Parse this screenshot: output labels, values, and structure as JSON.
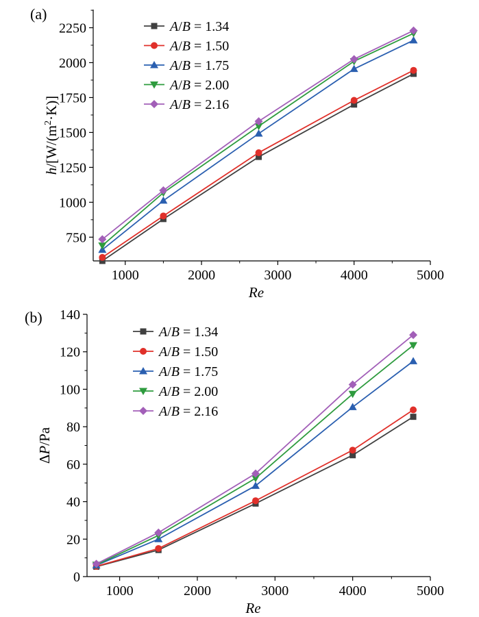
{
  "chart_data": [
    {
      "panel_label": "(a)",
      "type": "line",
      "xlabel": "Re",
      "ylabel": {
        "main": "h/[W/(m",
        "sup": "2",
        "tail": "·K)]"
      },
      "xlim": [
        580,
        5000
      ],
      "ylim": [
        580,
        2380
      ],
      "xticks": [
        1000,
        2000,
        3000,
        4000,
        5000
      ],
      "yticks": [
        750,
        1000,
        1250,
        1500,
        1750,
        2000,
        2250
      ],
      "legend_position": "top-left",
      "x": [
        700,
        1500,
        2750,
        4000,
        4780
      ],
      "series": [
        {
          "name": "A/B = 1.34",
          "ratio": "1.34",
          "color": "#404040",
          "marker": "square",
          "values": [
            580,
            880,
            1325,
            1700,
            1920
          ]
        },
        {
          "name": "A/B = 1.50",
          "ratio": "1.50",
          "color": "#e0302a",
          "marker": "circle",
          "values": [
            605,
            902,
            1355,
            1730,
            1945
          ]
        },
        {
          "name": "A/B = 1.75",
          "ratio": "1.75",
          "color": "#2a5fb0",
          "marker": "triangle-up",
          "values": [
            660,
            1012,
            1492,
            1955,
            2160
          ]
        },
        {
          "name": "A/B = 2.00",
          "ratio": "2.00",
          "color": "#2e9b3e",
          "marker": "triangle-down",
          "values": [
            690,
            1068,
            1545,
            2010,
            2210
          ]
        },
        {
          "name": "A/B = 2.16",
          "ratio": "2.16",
          "color": "#a25fb8",
          "marker": "diamond",
          "values": [
            735,
            1085,
            1580,
            2025,
            2230
          ]
        }
      ]
    },
    {
      "panel_label": "(b)",
      "type": "line",
      "xlabel": "Re",
      "ylabel": {
        "main": "ΔP/Pa"
      },
      "xlim": [
        580,
        5000
      ],
      "ylim": [
        0,
        140
      ],
      "xticks": [
        1000,
        2000,
        3000,
        4000,
        5000
      ],
      "yticks": [
        0,
        20,
        40,
        60,
        80,
        100,
        120,
        140
      ],
      "legend_position": "top-left",
      "x": [
        700,
        1500,
        2750,
        4000,
        4780
      ],
      "series": [
        {
          "name": "A/B = 1.34",
          "ratio": "1.34",
          "color": "#404040",
          "marker": "square",
          "values": [
            5.3,
            14.2,
            39.0,
            64.8,
            85.3
          ]
        },
        {
          "name": "A/B = 1.50",
          "ratio": "1.50",
          "color": "#e0302a",
          "marker": "circle",
          "values": [
            5.5,
            15.0,
            40.5,
            67.5,
            89.0
          ]
        },
        {
          "name": "A/B = 1.75",
          "ratio": "1.75",
          "color": "#2a5fb0",
          "marker": "triangle-up",
          "values": [
            6.0,
            20.0,
            48.5,
            90.5,
            115.0
          ]
        },
        {
          "name": "A/B = 2.00",
          "ratio": "2.00",
          "color": "#2e9b3e",
          "marker": "triangle-down",
          "values": [
            6.3,
            22.0,
            52.5,
            97.5,
            123.5
          ]
        },
        {
          "name": "A/B = 2.16",
          "ratio": "2.16",
          "color": "#a25fb8",
          "marker": "diamond",
          "values": [
            6.8,
            23.5,
            55.0,
            102.5,
            129.0
          ]
        }
      ]
    }
  ]
}
